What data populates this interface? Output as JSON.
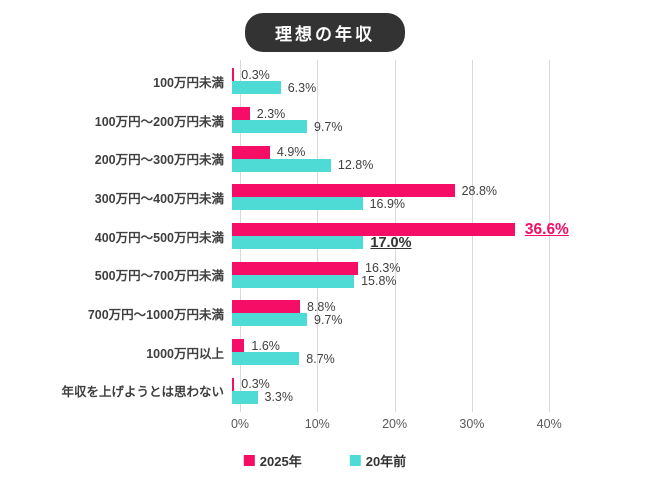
{
  "title": "理想の年収",
  "colors": {
    "series_2025": "#F50D66",
    "series_20yr": "#4FDBD5",
    "title_badge_bg": "#333333",
    "gridline": "#D9D9D9",
    "label_text": "#3F3F3F",
    "tick_text": "#595959"
  },
  "legend": [
    {
      "label": "2025年",
      "color": "#F50D66"
    },
    {
      "label": "20年前",
      "color": "#4FDBD5"
    }
  ],
  "chart_data": {
    "type": "bar",
    "orientation": "horizontal",
    "title": "理想の年収",
    "categories": [
      "100万円未満",
      "100万円〜200万円未満",
      "200万円〜300万円未満",
      "300万円〜400万円未満",
      "400万円〜500万円未満",
      "500万円〜700万円未満",
      "700万円〜1000万円未満",
      "1000万円以上",
      "年収を上げようとは思わない"
    ],
    "series": [
      {
        "name": "2025年",
        "color": "#F50D66",
        "values": [
          0.3,
          2.3,
          4.9,
          28.8,
          36.6,
          16.3,
          8.8,
          1.6,
          0.3
        ],
        "labels": [
          "0.3%",
          "2.3%",
          "4.9%",
          "28.8%",
          "36.6%",
          "16.3%",
          "8.8%",
          "1.6%",
          "0.3%"
        ]
      },
      {
        "name": "20年前",
        "color": "#4FDBD5",
        "values": [
          6.3,
          9.7,
          12.8,
          16.9,
          17.0,
          15.8,
          9.7,
          8.7,
          3.3
        ],
        "labels": [
          "6.3%",
          "9.7%",
          "12.8%",
          "16.9%",
          "17.0%",
          "15.8%",
          "9.7%",
          "8.7%",
          "3.3%"
        ]
      }
    ],
    "highlight_index": 4,
    "xlim": [
      0,
      40
    ],
    "x_ticks": [
      0,
      10,
      20,
      30,
      40
    ],
    "x_tick_labels": [
      "0%",
      "10%",
      "20%",
      "30%",
      "40%"
    ],
    "grid": true,
    "legend_position": "bottom"
  }
}
